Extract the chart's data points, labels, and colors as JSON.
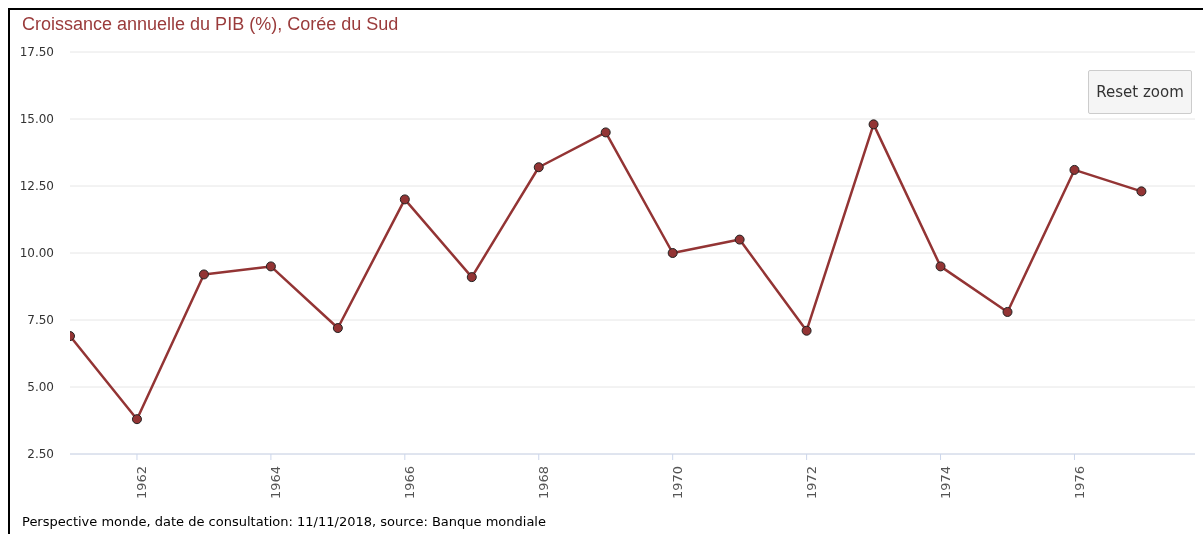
{
  "chart_data": {
    "type": "line",
    "title": "Croissance annuelle du PIB (%), Corée du Sud",
    "x": [
      1961,
      1962,
      1963,
      1964,
      1965,
      1966,
      1967,
      1968,
      1969,
      1970,
      1971,
      1972,
      1973,
      1974,
      1975,
      1976,
      1977
    ],
    "series": [
      {
        "color": "#933434",
        "values": [
          6.9,
          3.8,
          9.2,
          9.5,
          7.2,
          12.0,
          9.1,
          13.2,
          14.5,
          10.0,
          10.5,
          7.1,
          14.8,
          9.5,
          7.8,
          13.1,
          12.3
        ]
      }
    ],
    "xlim": [
      1961,
      1977.8
    ],
    "xticks": [
      1962,
      1964,
      1966,
      1968,
      1970,
      1972,
      1974,
      1976
    ],
    "ylim": [
      2.5,
      17.5
    ],
    "yticks": [
      {
        "value": 2.5,
        "label": "2.50"
      },
      {
        "value": 5,
        "label": "5.00"
      },
      {
        "value": 7.5,
        "label": "7.50"
      },
      {
        "value": 10,
        "label": "10.00"
      },
      {
        "value": 12.5,
        "label": "12.50"
      },
      {
        "value": 15,
        "label": "15.00"
      },
      {
        "value": 17.5,
        "label": "17.50"
      }
    ],
    "grid": "y",
    "marker": "circle",
    "line_style": "solid",
    "annotations": [
      "Reset zoom",
      "Perspective monde, date de consultation: 11/11/2018, source: Banque mondiale"
    ]
  }
}
